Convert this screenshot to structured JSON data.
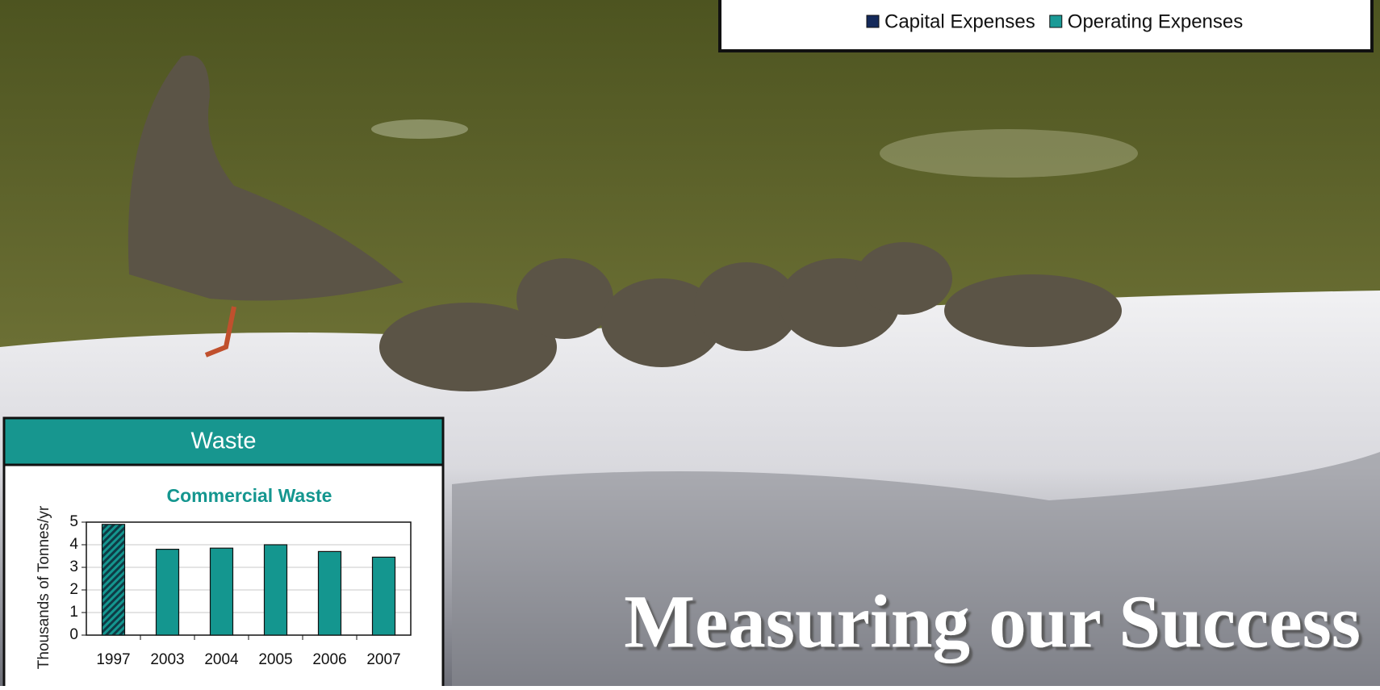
{
  "headline": "Measuring our Success",
  "top_legend": [
    {
      "name": "Capital Expenses",
      "color": "#14295a"
    },
    {
      "name": "Operating Expenses",
      "color": "#1a9a96"
    }
  ],
  "panel": {
    "title": "Waste"
  },
  "chart_data": {
    "type": "bar",
    "title": "Commercial Waste",
    "y_label": "Thousands of Tonnes/yr",
    "categories": [
      "1997",
      "2003",
      "2004",
      "2005",
      "2006",
      "2007"
    ],
    "values": [
      4.9,
      3.8,
      3.85,
      4.0,
      3.7,
      3.45
    ],
    "hatched": [
      true,
      false,
      false,
      false,
      false,
      false
    ],
    "color": "#14968f",
    "ylim": [
      0,
      5
    ],
    "yticks": [
      0,
      1,
      2,
      3,
      4,
      5
    ],
    "grid": true
  }
}
